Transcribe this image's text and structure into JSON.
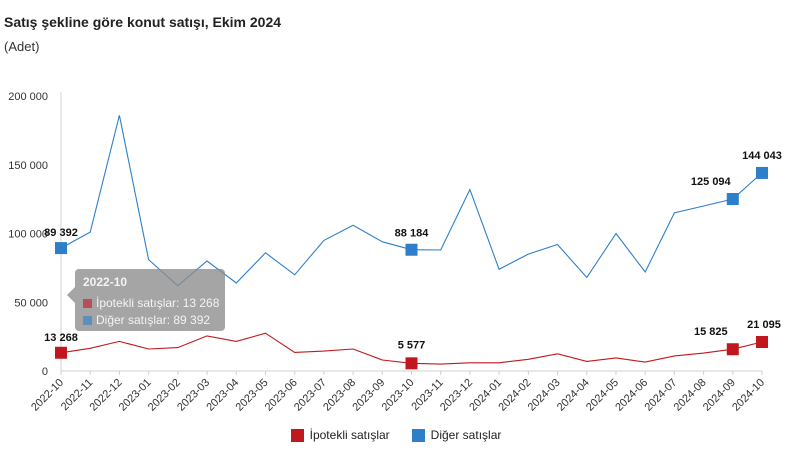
{
  "title": "Satış şekline göre konut satışı, Ekim 2024",
  "subtitle": "(Adet)",
  "colors": {
    "mortgage": "#C0181E",
    "other": "#2E7FC9"
  },
  "chart_data": {
    "type": "line",
    "categories": [
      "2022-10",
      "2022-11",
      "2022-12",
      "2023-01",
      "2023-02",
      "2023-03",
      "2023-04",
      "2023-05",
      "2023-06",
      "2023-07",
      "2023-08",
      "2023-09",
      "2023-10",
      "2023-11",
      "2023-12",
      "2024-01",
      "2024-02",
      "2024-03",
      "2024-04",
      "2024-05",
      "2024-06",
      "2024-07",
      "2024-08",
      "2024-09",
      "2024-10"
    ],
    "ylim": [
      0,
      200000
    ],
    "yticks": [
      {
        "value": 0,
        "label": "0"
      },
      {
        "value": 50000,
        "label": "50 000"
      },
      {
        "value": 100000,
        "label": "100 000"
      },
      {
        "value": 150000,
        "label": "150 000"
      },
      {
        "value": 200000,
        "label": "200 000"
      }
    ],
    "series": [
      {
        "key": "mortgage",
        "name": "İpotekli satışlar",
        "values": [
          13268,
          16500,
          21500,
          16000,
          17000,
          25500,
          21500,
          27500,
          13500,
          14500,
          16000,
          8000,
          5577,
          5000,
          6000,
          6000,
          8500,
          12500,
          7000,
          9500,
          6500,
          11000,
          13000,
          15825,
          21095
        ],
        "labels": [
          {
            "index": 0,
            "text": "13 268"
          },
          {
            "index": 12,
            "text": "5 577"
          },
          {
            "index": 23,
            "text": "15 825"
          },
          {
            "index": 24,
            "text": "21 095"
          }
        ]
      },
      {
        "key": "other",
        "name": "Diğer satışlar",
        "values": [
          89392,
          101000,
          186000,
          81000,
          62000,
          80000,
          64000,
          86000,
          70000,
          95000,
          106000,
          94000,
          88184,
          88000,
          132000,
          74000,
          85000,
          92000,
          68000,
          100000,
          72000,
          115000,
          120000,
          125094,
          144043
        ],
        "labels": [
          {
            "index": 0,
            "text": "89 392"
          },
          {
            "index": 12,
            "text": "88 184"
          },
          {
            "index": 23,
            "text": "125 094"
          },
          {
            "index": 24,
            "text": "144 043"
          }
        ]
      }
    ],
    "tooltip": {
      "title": "2022-10",
      "rows": [
        {
          "key": "mortgage",
          "text": "İpotekli satışlar: 13 268"
        },
        {
          "key": "other",
          "text": "Diğer satışlar: 89 392"
        }
      ]
    }
  }
}
